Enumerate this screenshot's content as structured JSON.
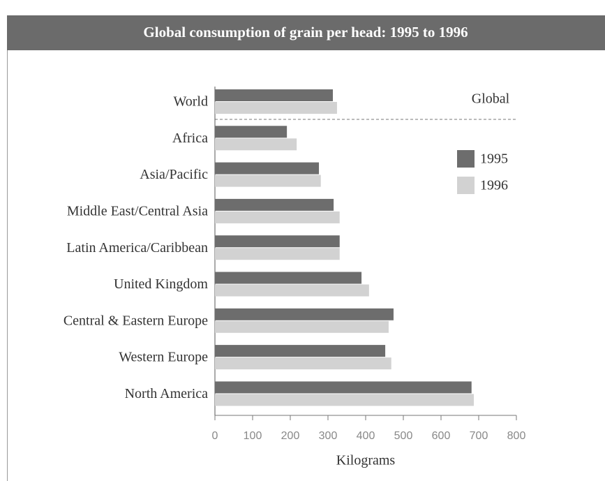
{
  "chart_data": {
    "type": "hbar",
    "title": "Global consumption of grain per head: 1995 to 1996",
    "xlabel": "Kilograms",
    "annotation": "Global",
    "categories": [
      "World",
      "Africa",
      "Asia/Pacific",
      "Middle East/Central Asia",
      "Latin America/Caribbean",
      "United Kingdom",
      "Central & Eastern Europe",
      "Western Europe",
      "North America"
    ],
    "series": [
      {
        "name": "1995",
        "color": "#6d6d6d",
        "values": [
          313,
          191,
          276,
          315,
          331,
          389,
          474,
          452,
          681
        ]
      },
      {
        "name": "1996",
        "color": "#d2d2d2",
        "values": [
          324,
          217,
          281,
          331,
          331,
          409,
          461,
          468,
          687
        ]
      }
    ],
    "xlim": [
      0,
      800
    ],
    "xticks": [
      0,
      100,
      200,
      300,
      400,
      500,
      600,
      700,
      800
    ],
    "legend": "right"
  }
}
